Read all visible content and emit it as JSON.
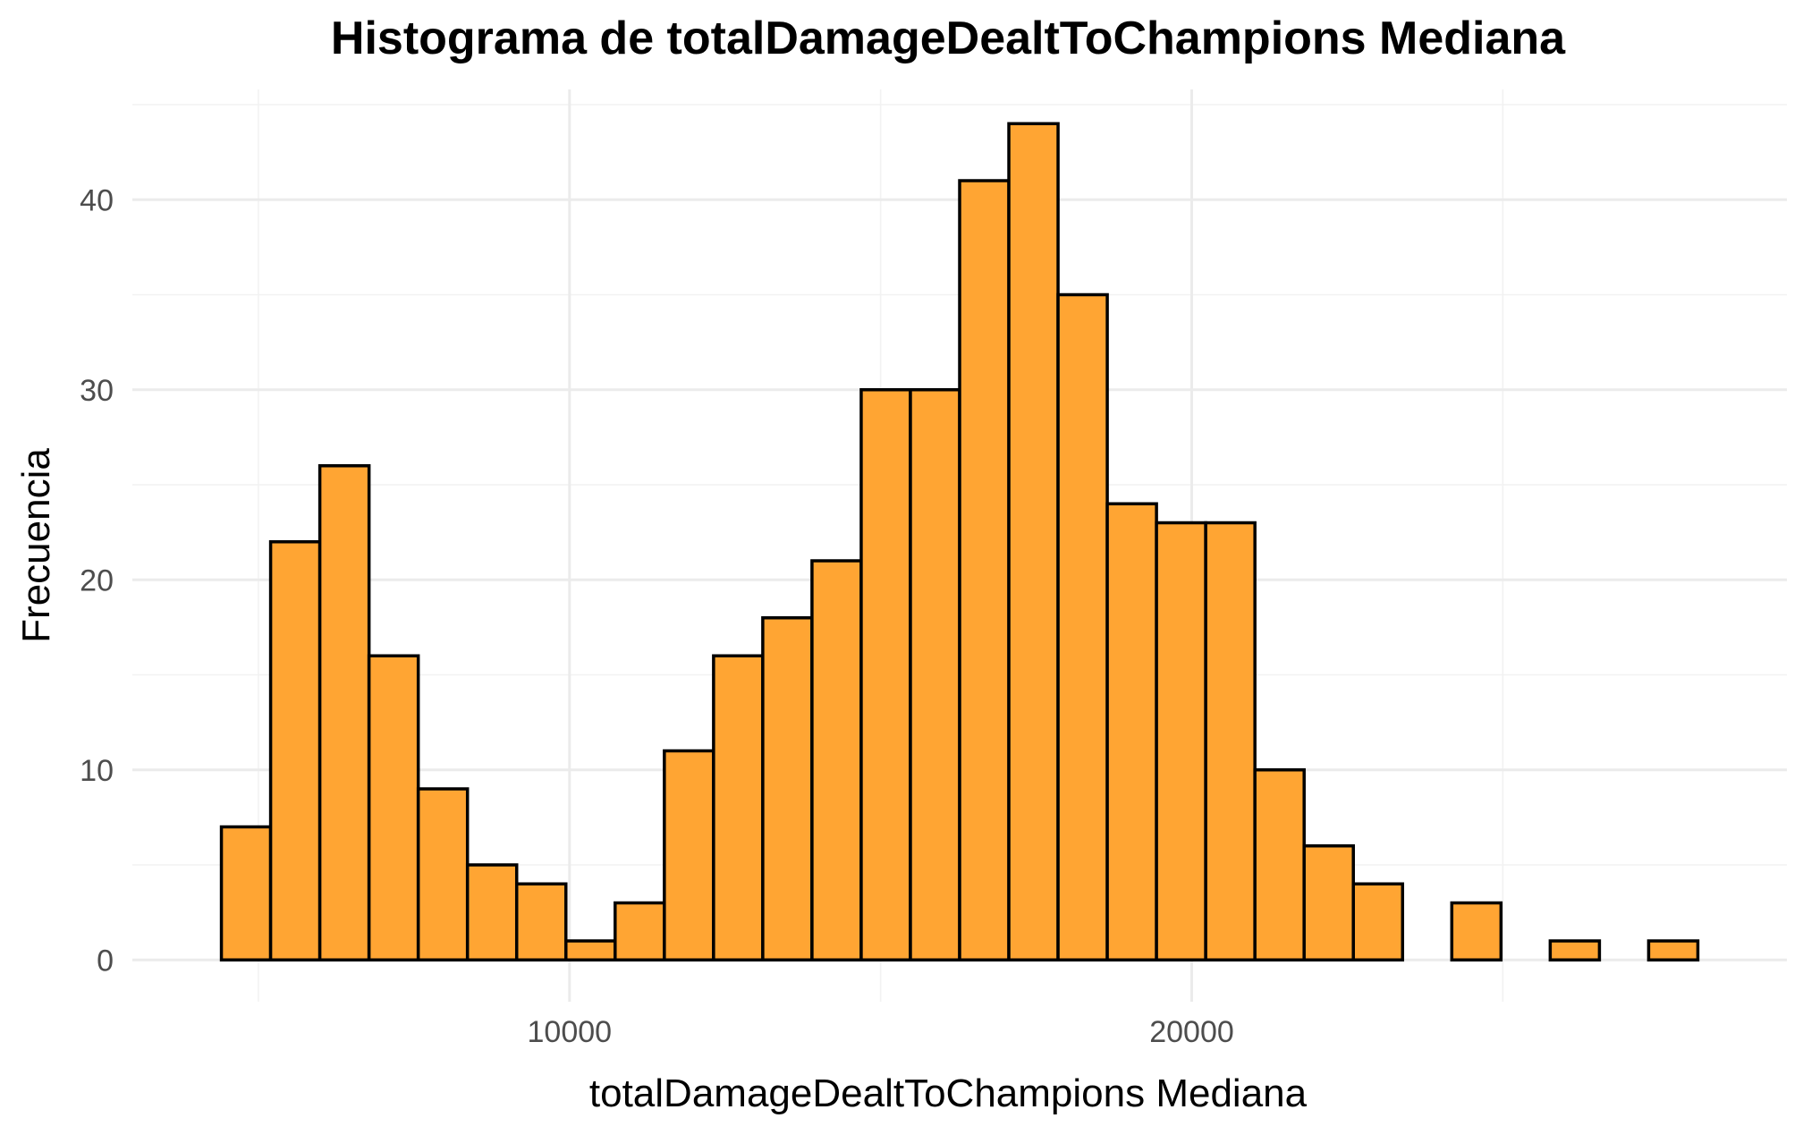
{
  "chart_data": {
    "type": "bar",
    "title": "Histograma de totalDamageDealtToChampions Mediana",
    "xlabel": "totalDamageDealtToChampions Mediana",
    "ylabel": "Frecuencia",
    "bin_width": 791,
    "bin_edges_start": 4405,
    "bins": [
      {
        "x0": 4405,
        "x1": 5196,
        "count": 7
      },
      {
        "x0": 5196,
        "x1": 5987,
        "count": 22
      },
      {
        "x0": 5987,
        "x1": 6778,
        "count": 26
      },
      {
        "x0": 6778,
        "x1": 7569,
        "count": 16
      },
      {
        "x0": 7569,
        "x1": 8360,
        "count": 9
      },
      {
        "x0": 8360,
        "x1": 9151,
        "count": 5
      },
      {
        "x0": 9151,
        "x1": 9942,
        "count": 4
      },
      {
        "x0": 9942,
        "x1": 10733,
        "count": 1
      },
      {
        "x0": 10733,
        "x1": 11524,
        "count": 3
      },
      {
        "x0": 11524,
        "x1": 12315,
        "count": 11
      },
      {
        "x0": 12315,
        "x1": 13106,
        "count": 16
      },
      {
        "x0": 13106,
        "x1": 13897,
        "count": 18
      },
      {
        "x0": 13897,
        "x1": 14688,
        "count": 21
      },
      {
        "x0": 14688,
        "x1": 15479,
        "count": 30
      },
      {
        "x0": 15479,
        "x1": 16270,
        "count": 30
      },
      {
        "x0": 16270,
        "x1": 17061,
        "count": 41
      },
      {
        "x0": 17061,
        "x1": 17852,
        "count": 44
      },
      {
        "x0": 17852,
        "x1": 18643,
        "count": 35
      },
      {
        "x0": 18643,
        "x1": 19434,
        "count": 24
      },
      {
        "x0": 19434,
        "x1": 20225,
        "count": 23
      },
      {
        "x0": 20225,
        "x1": 21016,
        "count": 23
      },
      {
        "x0": 21016,
        "x1": 21807,
        "count": 10
      },
      {
        "x0": 21807,
        "x1": 22598,
        "count": 6
      },
      {
        "x0": 22598,
        "x1": 23389,
        "count": 4
      },
      {
        "x0": 23389,
        "x1": 24180,
        "count": 0
      },
      {
        "x0": 24180,
        "x1": 24971,
        "count": 3
      },
      {
        "x0": 24971,
        "x1": 25762,
        "count": 0
      },
      {
        "x0": 25762,
        "x1": 26553,
        "count": 1
      },
      {
        "x0": 26553,
        "x1": 27344,
        "count": 0
      },
      {
        "x0": 27344,
        "x1": 28135,
        "count": 1
      }
    ],
    "xlim": [
      2974,
      29566
    ],
    "ylim": [
      -2.2,
      45.8
    ],
    "x_ticks": [
      10000,
      20000
    ],
    "x_tick_labels": [
      "10000",
      "20000"
    ],
    "x_minor_ticks": [
      5000,
      15000,
      25000
    ],
    "y_ticks": [
      0,
      10,
      20,
      30,
      40
    ],
    "y_tick_labels": [
      "0",
      "10",
      "20",
      "30",
      "40"
    ],
    "y_minor_ticks": [
      5,
      15,
      25,
      35,
      45
    ],
    "grid": true,
    "legend": "none",
    "bar_fill": "#FFA533",
    "bar_outline": "#000000"
  }
}
